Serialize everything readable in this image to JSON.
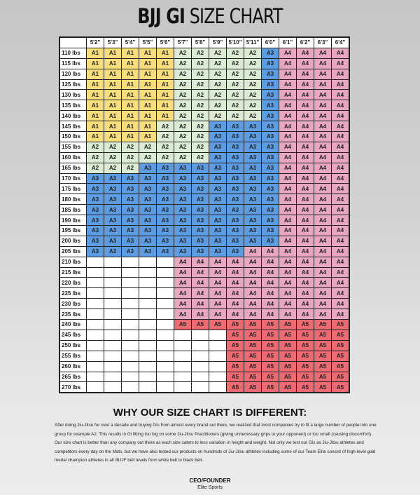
{
  "title": {
    "bold": "BJJ GI",
    "rest": "SIZE CHART"
  },
  "size_colors": {
    "A1": "#f8dd7c",
    "A2": "#dcebd3",
    "A3": "#5c9ce2",
    "A4": "#e8a6c1",
    "A5": "#ec6b73"
  },
  "chart_data": {
    "type": "table",
    "heights": [
      "5'2\"",
      "5'3\"",
      "5'4\"",
      "5'5\"",
      "5'6\"",
      "5'7\"",
      "5'8\"",
      "5'9\"",
      "5'10\"",
      "5'11\"",
      "6'0\"",
      "6'1\"",
      "6'2\"",
      "6'3\"",
      "6'4\""
    ],
    "rows": [
      {
        "weight": "110 lbs",
        "sizes": [
          "A1",
          "A1",
          "A1",
          "A1",
          "A1",
          "A2",
          "A2",
          "A2",
          "A2",
          "A2",
          "A3",
          "A4",
          "A4",
          "A4",
          "A4"
        ]
      },
      {
        "weight": "115 lbs",
        "sizes": [
          "A1",
          "A1",
          "A1",
          "A1",
          "A1",
          "A2",
          "A2",
          "A2",
          "A2",
          "A2",
          "A3",
          "A4",
          "A4",
          "A4",
          "A4"
        ]
      },
      {
        "weight": "120 lbs",
        "sizes": [
          "A1",
          "A1",
          "A1",
          "A1",
          "A1",
          "A2",
          "A2",
          "A2",
          "A2",
          "A2",
          "A3",
          "A4",
          "A4",
          "A4",
          "A4"
        ]
      },
      {
        "weight": "125 lbs",
        "sizes": [
          "A1",
          "A1",
          "A1",
          "A1",
          "A1",
          "A2",
          "A2",
          "A2",
          "A2",
          "A2",
          "A3",
          "A4",
          "A4",
          "A4",
          "A4"
        ]
      },
      {
        "weight": "130 lbs",
        "sizes": [
          "A1",
          "A1",
          "A1",
          "A1",
          "A1",
          "A2",
          "A2",
          "A2",
          "A2",
          "A2",
          "A3",
          "A4",
          "A4",
          "A4",
          "A4"
        ]
      },
      {
        "weight": "135 lbs",
        "sizes": [
          "A1",
          "A1",
          "A1",
          "A1",
          "A1",
          "A2",
          "A2",
          "A2",
          "A2",
          "A2",
          "A3",
          "A4",
          "A4",
          "A4",
          "A4"
        ]
      },
      {
        "weight": "140 lbs",
        "sizes": [
          "A1",
          "A1",
          "A1",
          "A1",
          "A1",
          "A2",
          "A2",
          "A2",
          "A2",
          "A2",
          "A3",
          "A4",
          "A4",
          "A4",
          "A4"
        ]
      },
      {
        "weight": "145 lbs",
        "sizes": [
          "A1",
          "A1",
          "A1",
          "A1",
          "A2",
          "A2",
          "A2",
          "A3",
          "A3",
          "A3",
          "A3",
          "A4",
          "A4",
          "A4",
          "A4"
        ]
      },
      {
        "weight": "150 lbs",
        "sizes": [
          "A1",
          "A1",
          "A1",
          "A1",
          "A2",
          "A2",
          "A2",
          "A3",
          "A3",
          "A3",
          "A3",
          "A4",
          "A4",
          "A4",
          "A4"
        ]
      },
      {
        "weight": "155 lbs",
        "sizes": [
          "A2",
          "A2",
          "A2",
          "A2",
          "A2",
          "A2",
          "A2",
          "A3",
          "A3",
          "A3",
          "A3",
          "A4",
          "A4",
          "A4",
          "A4"
        ]
      },
      {
        "weight": "160 lbs",
        "sizes": [
          "A2",
          "A2",
          "A2",
          "A2",
          "A2",
          "A2",
          "A2",
          "A3",
          "A3",
          "A3",
          "A3",
          "A4",
          "A4",
          "A4",
          "A4"
        ]
      },
      {
        "weight": "165 lbs",
        "sizes": [
          "A2",
          "A2",
          "A2",
          "A3",
          "A3",
          "A3",
          "A3",
          "A3",
          "A3",
          "A3",
          "A3",
          "A4",
          "A4",
          "A4",
          "A4"
        ]
      },
      {
        "weight": "170 lbs",
        "sizes": [
          "A3",
          "A3",
          "A3",
          "A3",
          "A3",
          "A3",
          "A3",
          "A3",
          "A3",
          "A3",
          "A3",
          "A4",
          "A4",
          "A4",
          "A4"
        ]
      },
      {
        "weight": "175 lbs",
        "sizes": [
          "A3",
          "A3",
          "A3",
          "A3",
          "A3",
          "A3",
          "A3",
          "A3",
          "A3",
          "A3",
          "A3",
          "A4",
          "A4",
          "A4",
          "A4"
        ]
      },
      {
        "weight": "180 lbs",
        "sizes": [
          "A3",
          "A3",
          "A3",
          "A3",
          "A3",
          "A3",
          "A3",
          "A3",
          "A3",
          "A3",
          "A3",
          "A4",
          "A4",
          "A4",
          "A4"
        ]
      },
      {
        "weight": "185 lbs",
        "sizes": [
          "A3",
          "A3",
          "A3",
          "A3",
          "A3",
          "A3",
          "A3",
          "A3",
          "A3",
          "A3",
          "A3",
          "A4",
          "A4",
          "A4",
          "A4"
        ]
      },
      {
        "weight": "190 lbs",
        "sizes": [
          "A3",
          "A3",
          "A3",
          "A3",
          "A3",
          "A3",
          "A3",
          "A3",
          "A3",
          "A3",
          "A3",
          "A4",
          "A4",
          "A4",
          "A4"
        ]
      },
      {
        "weight": "195 lbs",
        "sizes": [
          "A3",
          "A3",
          "A3",
          "A3",
          "A3",
          "A3",
          "A3",
          "A3",
          "A3",
          "A3",
          "A3",
          "A4",
          "A4",
          "A4",
          "A4"
        ]
      },
      {
        "weight": "200 lbs",
        "sizes": [
          "A3",
          "A3",
          "A3",
          "A3",
          "A3",
          "A3",
          "A3",
          "A3",
          "A3",
          "A3",
          "A3",
          "A4",
          "A4",
          "A4",
          "A4"
        ]
      },
      {
        "weight": "205 lbs",
        "sizes": [
          "A3",
          "A3",
          "A3",
          "A3",
          "A3",
          "A3",
          "A3",
          "A3",
          "A3",
          "A4",
          "A4",
          "A4",
          "A4",
          "A4",
          "A4"
        ]
      },
      {
        "weight": "210 lbs",
        "sizes": [
          "",
          "",
          "",
          "",
          "",
          "A4",
          "A4",
          "A4",
          "A4",
          "A4",
          "A4",
          "A4",
          "A4",
          "A4",
          "A4"
        ]
      },
      {
        "weight": "215 lbs",
        "sizes": [
          "",
          "",
          "",
          "",
          "",
          "A4",
          "A4",
          "A4",
          "A4",
          "A4",
          "A4",
          "A4",
          "A4",
          "A4",
          "A4"
        ]
      },
      {
        "weight": "220 lbs",
        "sizes": [
          "",
          "",
          "",
          "",
          "",
          "A4",
          "A4",
          "A4",
          "A4",
          "A4",
          "A4",
          "A4",
          "A4",
          "A4",
          "A4"
        ]
      },
      {
        "weight": "225 lbs",
        "sizes": [
          "",
          "",
          "",
          "",
          "",
          "A4",
          "A4",
          "A4",
          "A4",
          "A4",
          "A4",
          "A4",
          "A4",
          "A4",
          "A4"
        ]
      },
      {
        "weight": "230 lbs",
        "sizes": [
          "",
          "",
          "",
          "",
          "",
          "A4",
          "A4",
          "A4",
          "A4",
          "A4",
          "A4",
          "A4",
          "A4",
          "A4",
          "A4"
        ]
      },
      {
        "weight": "235 lbs",
        "sizes": [
          "",
          "",
          "",
          "",
          "",
          "A4",
          "A4",
          "A4",
          "A4",
          "A4",
          "A4",
          "A4",
          "A4",
          "A4",
          "A4"
        ]
      },
      {
        "weight": "240 lbs",
        "sizes": [
          "",
          "",
          "",
          "",
          "",
          "A5",
          "A5",
          "A5",
          "A5",
          "A5",
          "A5",
          "A5",
          "A5",
          "A5",
          "A5"
        ]
      },
      {
        "weight": "245 lbs",
        "sizes": [
          "",
          "",
          "",
          "",
          "",
          "",
          "",
          "",
          "A5",
          "A5",
          "A5",
          "A5",
          "A5",
          "A5",
          "A5"
        ]
      },
      {
        "weight": "250 lbs",
        "sizes": [
          "",
          "",
          "",
          "",
          "",
          "",
          "",
          "",
          "A5",
          "A5",
          "A5",
          "A5",
          "A5",
          "A5",
          "A5"
        ]
      },
      {
        "weight": "255 lbs",
        "sizes": [
          "",
          "",
          "",
          "",
          "",
          "",
          "",
          "",
          "A5",
          "A5",
          "A5",
          "A5",
          "A5",
          "A5",
          "A5"
        ]
      },
      {
        "weight": "260 lbs",
        "sizes": [
          "",
          "",
          "",
          "",
          "",
          "",
          "",
          "",
          "A5",
          "A5",
          "A5",
          "A5",
          "A5",
          "A5",
          "A5"
        ]
      },
      {
        "weight": "265 lbs",
        "sizes": [
          "",
          "",
          "",
          "",
          "",
          "",
          "",
          "",
          "A5",
          "A5",
          "A5",
          "A5",
          "A5",
          "A5",
          "A5"
        ]
      },
      {
        "weight": "270 lbs",
        "sizes": [
          "",
          "",
          "",
          "",
          "",
          "",
          "",
          "",
          "A5",
          "A5",
          "A5",
          "A5",
          "A5",
          "A5",
          "A5"
        ]
      }
    ]
  },
  "why": {
    "heading": "WHY OUR SIZE CHART IS DIFFERENT:",
    "paragraphs": [
      "After doing Jiu-Jitsu for over a decade and buying Gis from almost every brand out there, we realized that most companies try to fit a large number of people into one group for example A2. This results in Gi fitting too big on some Jiu-Jitsu Practitioners (giving unnecessary grips to your opponent) or too small (causing discomfort).",
      "Our size chart is better than any company out there as each size caters to less variation in height and weight. Not only we test our Gis as Jiu-Jitsu athletes and competitors every day on the Mats, but we have also tested our products on hundreds of Jiu-Jitsu athletes including some of our Team Elite consist of high-level gold medal champion athletes in all IBJJF belt levels from white belt to black belt."
    ],
    "signature_title": "CEO/FOUNDER",
    "signature_company": "Elite Sports"
  }
}
